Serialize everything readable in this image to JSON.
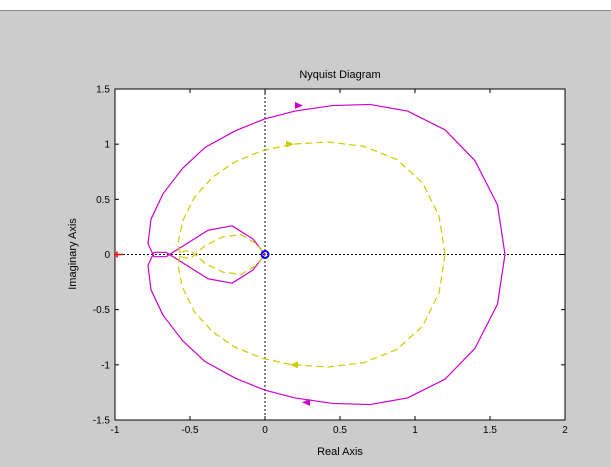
{
  "chart_data": {
    "type": "line",
    "title": "Nyquist Diagram",
    "xlabel": "Real Axis",
    "ylabel": "Imaginary Axis",
    "xlim": [
      -1,
      2
    ],
    "ylim": [
      -1.5,
      1.5
    ],
    "xticks": [
      -1,
      -0.5,
      0,
      0.5,
      1,
      1.5,
      2
    ],
    "xtick_labels": [
      "-1",
      "-0.5",
      "0",
      "0.5",
      "1",
      "1.5",
      "2"
    ],
    "yticks": [
      1.5,
      1,
      0.5,
      0,
      -0.5,
      -1,
      -1.5
    ],
    "ytick_labels": [
      "1.5",
      "1",
      "0.5",
      "0",
      "-0.5",
      "-1",
      "-1.5"
    ],
    "grid": false,
    "critical_point": {
      "x": -1,
      "y": 0,
      "color": "#ff0000"
    },
    "origin_marker": {
      "x": 0,
      "y": 0,
      "color": "#0000ff"
    },
    "series": [
      {
        "style": "solid",
        "color": "#cc00cc",
        "x": [
          1.6,
          1.55,
          1.4,
          1.2,
          0.95,
          0.7,
          0.45,
          0.2,
          0.0,
          -0.2,
          -0.4,
          -0.55,
          -0.68,
          -0.76,
          -0.78,
          -0.74,
          -0.66,
          -0.52,
          -0.38,
          -0.22,
          -0.08,
          0.0
        ],
        "y": [
          0.0,
          0.45,
          0.85,
          1.13,
          1.3,
          1.36,
          1.35,
          1.3,
          1.23,
          1.12,
          0.97,
          0.78,
          0.55,
          0.32,
          0.1,
          -0.02,
          -0.02,
          0.1,
          0.22,
          0.26,
          0.14,
          0.0
        ]
      },
      {
        "style": "dashed",
        "color": "#cccc00",
        "x": [
          1.2,
          1.16,
          1.05,
          0.88,
          0.66,
          0.42,
          0.18,
          -0.02,
          -0.2,
          -0.35,
          -0.47,
          -0.55,
          -0.58,
          -0.56,
          -0.5,
          -0.4,
          -0.28,
          -0.16,
          -0.06,
          0.0
        ],
        "y": [
          0.0,
          0.35,
          0.65,
          0.86,
          0.98,
          1.02,
          1.0,
          0.94,
          0.84,
          0.7,
          0.52,
          0.3,
          0.1,
          -0.02,
          -0.04,
          0.08,
          0.16,
          0.18,
          0.1,
          0.0
        ]
      }
    ],
    "arrows": [
      {
        "x": 0.22,
        "y": 1.35,
        "dir": "right",
        "color": "#cc00cc"
      },
      {
        "x": 0.28,
        "y": -1.34,
        "dir": "left",
        "color": "#cc00cc"
      },
      {
        "x": 0.16,
        "y": 1.0,
        "dir": "right",
        "color": "#cccc00"
      },
      {
        "x": 0.2,
        "y": -1.0,
        "dir": "left",
        "color": "#cccc00"
      }
    ]
  }
}
